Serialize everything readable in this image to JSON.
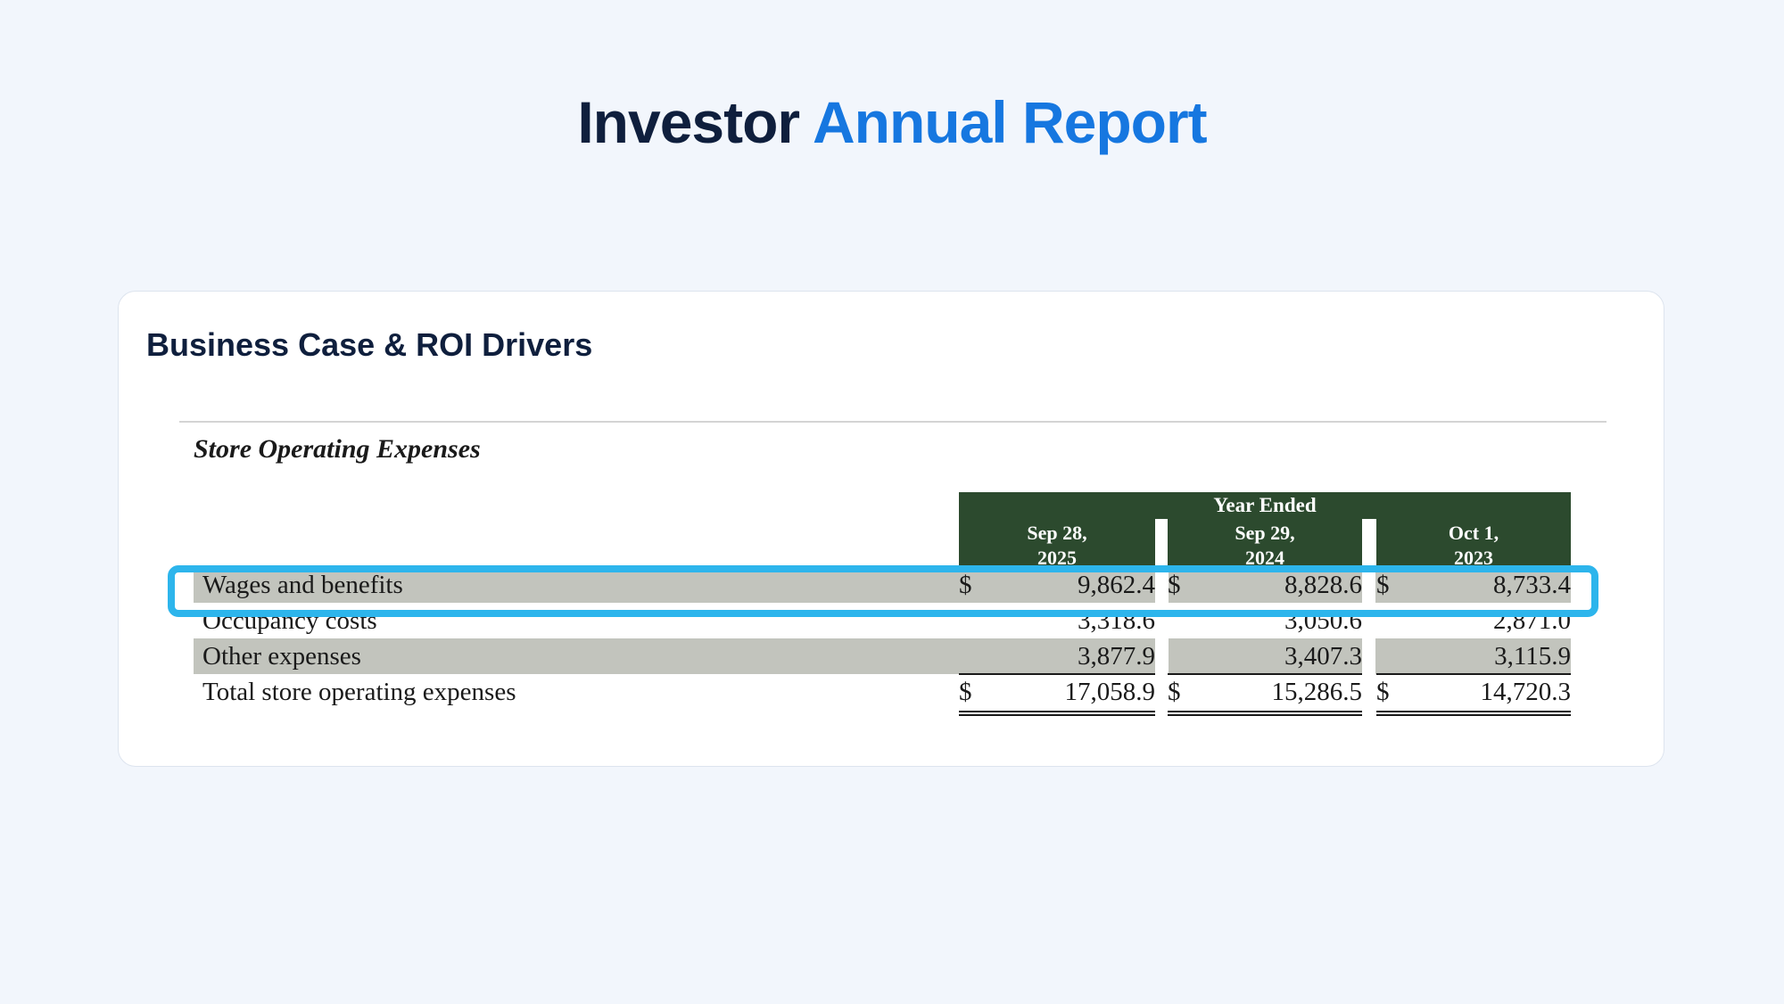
{
  "header": {
    "title_part_1": "Investor",
    "title_part_2": "Annual Report"
  },
  "card": {
    "title": "Business Case & ROI Drivers",
    "document": {
      "heading": "Store Operating Expenses",
      "column_group": "Year Ended",
      "columns": [
        {
          "line1": "Sep 28,",
          "line2": "2025"
        },
        {
          "line1": "Sep 29,",
          "line2": "2024"
        },
        {
          "line1": "Oct 1,",
          "line2": "2023"
        }
      ],
      "currency_symbol": "$",
      "rows": [
        {
          "label": "Wages and benefits",
          "values": [
            "9,862.4",
            "8,828.6",
            "8,733.4"
          ],
          "highlighted": true
        },
        {
          "label": "Occupancy costs",
          "values": [
            "3,318.6",
            "3,050.6",
            "2,871.0"
          ]
        },
        {
          "label": "Other expenses",
          "values": [
            "3,877.9",
            "3,407.3",
            "3,115.9"
          ]
        },
        {
          "label": "Total store operating expenses",
          "values": [
            "17,058.9",
            "15,286.5",
            "14,720.3"
          ]
        }
      ]
    }
  },
  "colors": {
    "page_background": "#f2f6fc",
    "title_dark": "#0f1f3d",
    "title_accent": "#1677e0",
    "table_header_green": "#2c4a2e",
    "row_shade": "#c2c4bd",
    "highlight": "#2db5ec"
  }
}
